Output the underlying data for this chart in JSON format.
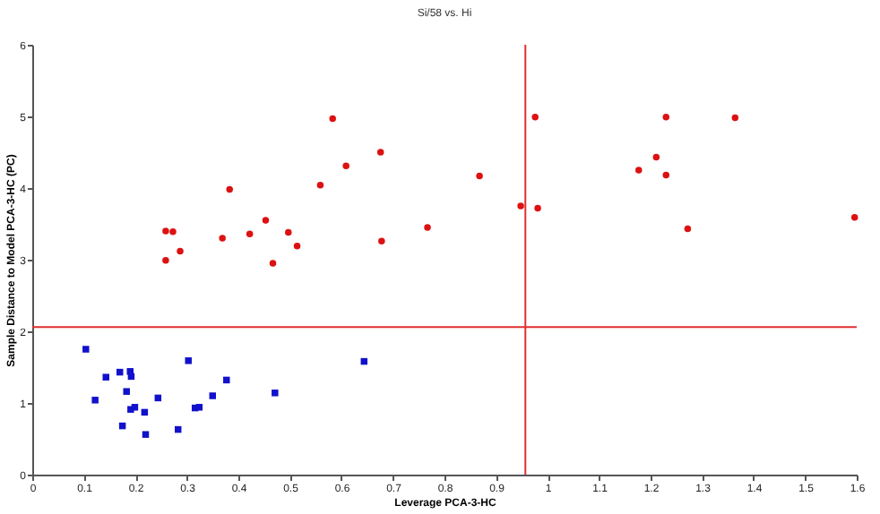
{
  "chart_data": {
    "type": "scatter",
    "title": "Si/58 vs. Hi",
    "xlabel": "Leverage PCA-3-HC",
    "ylabel": "Sample Distance to Model PCA-3-HC (PC)",
    "xlim": [
      0,
      1.6
    ],
    "xticks": [
      0,
      0.1,
      0.2,
      0.3,
      0.4,
      0.5,
      0.6,
      0.7,
      0.8,
      0.9,
      1,
      1.1,
      1.2,
      1.3,
      1.4,
      1.5,
      1.6
    ],
    "ylim": [
      0,
      6
    ],
    "yticks": [
      0,
      1,
      2,
      3,
      4,
      5,
      6
    ],
    "grid": false,
    "ref_lines": [
      {
        "axis": "x",
        "value": 0.957,
        "color": "#e03030"
      },
      {
        "axis": "y",
        "value": 2.06,
        "color": "#e03030"
      }
    ],
    "series": [
      {
        "color": "#dd1111",
        "marker": "circle",
        "x": [
          0.259,
          0.273,
          0.287,
          0.259,
          0.383,
          0.369,
          0.422,
          0.453,
          0.497,
          0.514,
          0.467,
          0.559,
          0.583,
          0.609,
          0.676,
          0.678,
          0.767,
          0.868,
          0.948,
          0.976,
          0.981,
          1.177,
          1.211,
          1.23,
          1.23,
          1.272,
          1.364,
          1.596
        ],
        "values": [
          3.4,
          3.39,
          3.12,
          2.99,
          3.98,
          3.3,
          3.36,
          3.55,
          3.38,
          3.19,
          2.95,
          4.04,
          4.97,
          4.31,
          4.5,
          3.26,
          3.45,
          4.17,
          3.75,
          4.99,
          3.72,
          4.25,
          4.43,
          4.99,
          4.18,
          3.43,
          4.98,
          3.59
        ]
      },
      {
        "color": "#1111cc",
        "marker": "square",
        "x": [
          0.104,
          0.122,
          0.143,
          0.17,
          0.19,
          0.192,
          0.183,
          0.175,
          0.191,
          0.199,
          0.218,
          0.22,
          0.244,
          0.283,
          0.303,
          0.316,
          0.324,
          0.35,
          0.377,
          0.471,
          0.644
        ],
        "values": [
          1.75,
          1.04,
          1.36,
          1.43,
          1.44,
          1.37,
          1.16,
          0.68,
          0.91,
          0.94,
          0.87,
          0.56,
          1.07,
          0.63,
          1.59,
          0.93,
          0.94,
          1.1,
          1.32,
          1.14,
          1.58
        ]
      }
    ]
  }
}
